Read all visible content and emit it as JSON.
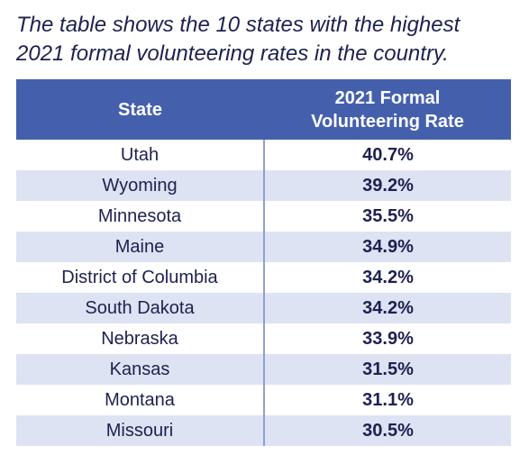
{
  "caption": [
    "The table shows the 10 states with the highest",
    "2021 formal volunteering rates in the country."
  ],
  "table": {
    "header": [
      "State",
      "2021 Formal Volunteering Rate"
    ],
    "rows": [
      [
        "Utah",
        "40.7%"
      ],
      [
        "Wyoming",
        "39.2%"
      ],
      [
        "Minnesota",
        "35.5%"
      ],
      [
        "Maine",
        "34.9%"
      ],
      [
        "District of Columbia",
        "34.2%"
      ],
      [
        "South Dakota",
        "34.2%"
      ],
      [
        "Nebraska",
        "33.9%"
      ],
      [
        "Kansas",
        "31.5%"
      ],
      [
        "Montana",
        "31.1%"
      ],
      [
        "Missouri",
        "30.5%"
      ]
    ]
  }
}
